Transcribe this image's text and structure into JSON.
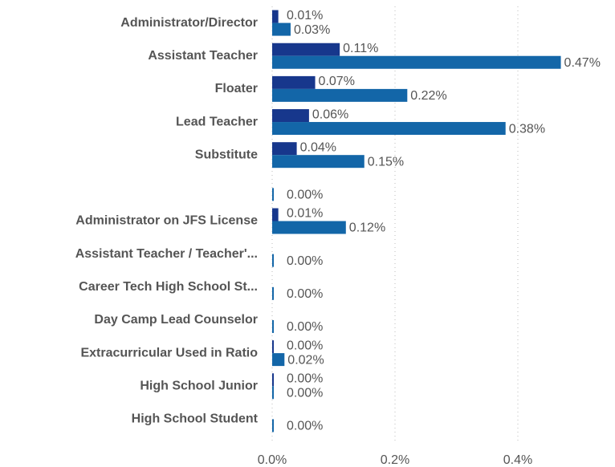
{
  "chart_data": {
    "type": "bar",
    "orientation": "horizontal",
    "categories": [
      "Administrator/Director",
      "Assistant Teacher",
      "Floater",
      "Lead Teacher",
      "Substitute",
      null,
      "Administrator on JFS License",
      "Assistant Teacher / Teacher'...",
      "Career Tech High School St...",
      "Day Camp Lead Counselor",
      "Extracurricular Used in Ratio",
      "High School Junior",
      "High School Student"
    ],
    "series": [
      {
        "color": "#17378c",
        "values": [
          0.01,
          0.11,
          0.07,
          0.06,
          0.04,
          null,
          0.01,
          null,
          null,
          null,
          0.0,
          0.0,
          null
        ],
        "value_labels": [
          "0.01%",
          "0.11%",
          "0.07%",
          "0.06%",
          "0.04%",
          null,
          "0.01%",
          null,
          null,
          null,
          "0.00%",
          "0.00%",
          null
        ]
      },
      {
        "color": "#1366a8",
        "values": [
          0.03,
          0.47,
          0.22,
          0.38,
          0.15,
          0.0,
          0.12,
          0.0,
          0.0,
          0.0,
          0.02,
          0.0,
          0.0
        ],
        "value_labels": [
          "0.03%",
          "0.47%",
          "0.22%",
          "0.38%",
          "0.15%",
          "0.00%",
          "0.12%",
          "0.00%",
          "0.00%",
          "0.00%",
          "0.02%",
          "0.00%",
          "0.00%"
        ]
      }
    ],
    "xlim": [
      0,
      0.55
    ],
    "xticks": [
      {
        "value": 0,
        "label": "0.0%"
      },
      {
        "value": 0.2,
        "label": "0.2%"
      },
      {
        "value": 0.4,
        "label": "0.4%"
      }
    ],
    "grid": true
  }
}
